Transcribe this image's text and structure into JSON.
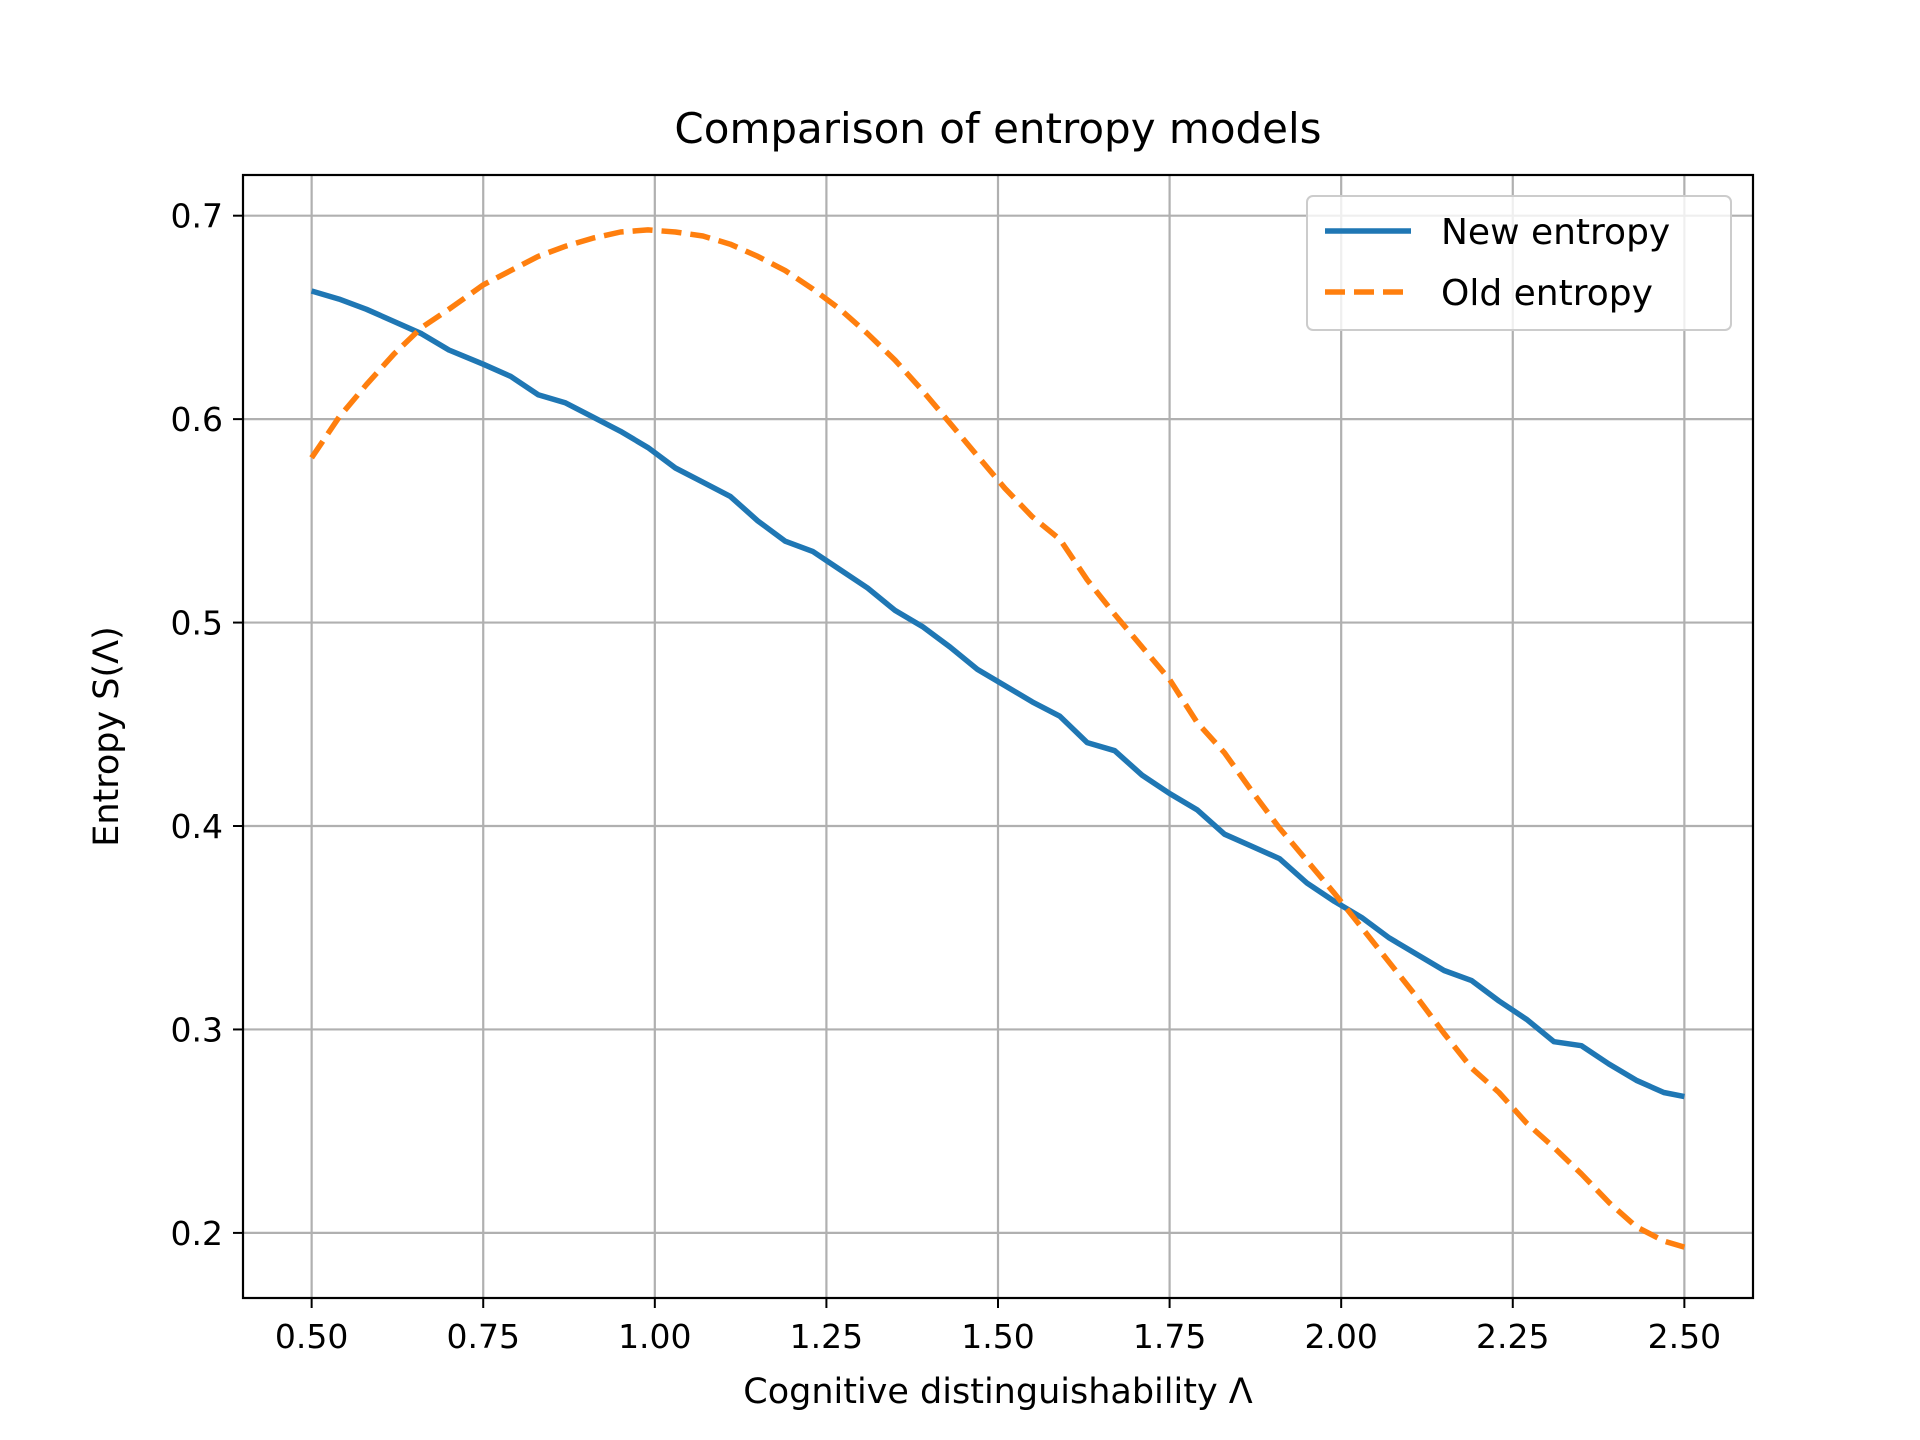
{
  "chart_data": {
    "type": "line",
    "title": "Comparison of entropy models",
    "xlabel": "Cognitive distinguishability Λ",
    "ylabel": "Entropy S(Λ)",
    "xlim": [
      0.4,
      2.6
    ],
    "ylim": [
      0.168,
      0.72
    ],
    "xticks": [
      0.5,
      0.75,
      1.0,
      1.25,
      1.5,
      1.75,
      2.0,
      2.25,
      2.5
    ],
    "xtick_labels": [
      "0.50",
      "0.75",
      "1.00",
      "1.25",
      "1.50",
      "1.75",
      "2.00",
      "2.25",
      "2.50"
    ],
    "yticks": [
      0.2,
      0.3,
      0.4,
      0.5,
      0.6,
      0.7
    ],
    "ytick_labels": [
      "0.2",
      "0.3",
      "0.4",
      "0.5",
      "0.6",
      "0.7"
    ],
    "grid": true,
    "legend": "top-right",
    "series": [
      {
        "name": "New entropy",
        "color": "#1f77b4",
        "style": "solid",
        "x": [
          0.5,
          0.54,
          0.58,
          0.62,
          0.66,
          0.7,
          0.75,
          0.79,
          0.83,
          0.87,
          0.91,
          0.95,
          0.99,
          1.03,
          1.07,
          1.11,
          1.15,
          1.19,
          1.23,
          1.27,
          1.31,
          1.35,
          1.39,
          1.43,
          1.47,
          1.51,
          1.55,
          1.59,
          1.63,
          1.67,
          1.71,
          1.75,
          1.79,
          1.83,
          1.87,
          1.91,
          1.95,
          1.99,
          2.03,
          2.07,
          2.11,
          2.15,
          2.19,
          2.23,
          2.27,
          2.31,
          2.35,
          2.39,
          2.43,
          2.47,
          2.5
        ],
        "y": [
          0.663,
          0.659,
          0.654,
          0.648,
          0.642,
          0.634,
          0.627,
          0.621,
          0.612,
          0.608,
          0.601,
          0.594,
          0.586,
          0.576,
          0.569,
          0.562,
          0.55,
          0.54,
          0.535,
          0.526,
          0.517,
          0.506,
          0.498,
          0.488,
          0.477,
          0.469,
          0.461,
          0.454,
          0.441,
          0.437,
          0.425,
          0.416,
          0.408,
          0.396,
          0.39,
          0.384,
          0.372,
          0.363,
          0.355,
          0.345,
          0.337,
          0.329,
          0.324,
          0.314,
          0.305,
          0.294,
          0.292,
          0.283,
          0.275,
          0.269,
          0.267
        ]
      },
      {
        "name": "Old entropy",
        "color": "#ff7f0e",
        "style": "dashed",
        "x": [
          0.5,
          0.54,
          0.58,
          0.62,
          0.66,
          0.7,
          0.75,
          0.79,
          0.83,
          0.87,
          0.91,
          0.95,
          0.99,
          1.03,
          1.07,
          1.11,
          1.15,
          1.19,
          1.23,
          1.27,
          1.31,
          1.35,
          1.39,
          1.43,
          1.47,
          1.51,
          1.55,
          1.59,
          1.63,
          1.67,
          1.71,
          1.75,
          1.79,
          1.83,
          1.87,
          1.91,
          1.95,
          1.99,
          2.03,
          2.07,
          2.11,
          2.15,
          2.19,
          2.23,
          2.27,
          2.31,
          2.35,
          2.39,
          2.43,
          2.47,
          2.5
        ],
        "y": [
          0.581,
          0.601,
          0.617,
          0.632,
          0.645,
          0.654,
          0.666,
          0.673,
          0.68,
          0.685,
          0.689,
          0.692,
          0.693,
          0.692,
          0.69,
          0.686,
          0.68,
          0.673,
          0.664,
          0.654,
          0.642,
          0.629,
          0.614,
          0.598,
          0.582,
          0.566,
          0.552,
          0.541,
          0.521,
          0.504,
          0.488,
          0.472,
          0.451,
          0.436,
          0.417,
          0.399,
          0.383,
          0.367,
          0.35,
          0.333,
          0.316,
          0.298,
          0.281,
          0.269,
          0.254,
          0.242,
          0.229,
          0.215,
          0.203,
          0.196,
          0.193
        ]
      }
    ]
  }
}
